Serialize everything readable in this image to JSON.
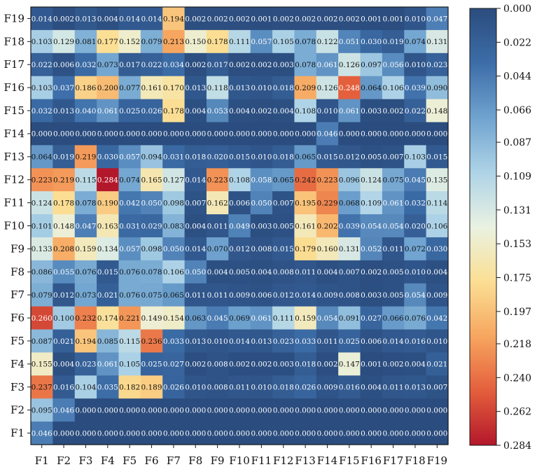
{
  "chart_data": {
    "type": "heatmap",
    "title": "",
    "xlabel": "",
    "ylabel": "",
    "x_labels": [
      "F1",
      "F2",
      "F3",
      "F4",
      "F5",
      "F6",
      "F7",
      "F8",
      "F9",
      "F10",
      "F11",
      "F12",
      "F13",
      "F14",
      "F15",
      "F16",
      "F17",
      "F18",
      "F19"
    ],
    "y_labels_top_to_bottom": [
      "F19",
      "F18",
      "F17",
      "F16",
      "F15",
      "F14",
      "F13",
      "F12",
      "F11",
      "F10",
      "F9",
      "F8",
      "F7",
      "F6",
      "F5",
      "F4",
      "F3",
      "F2",
      "F1"
    ],
    "matrix_rows_top_to_bottom": [
      [
        "0.014",
        "0.002",
        "0.013",
        "0.004",
        "0.014",
        "0.014",
        "0.194",
        "0.002",
        "0.002",
        "0.002",
        "0.001",
        "0.002",
        "0.002",
        "0.002",
        "0.002",
        "0.001",
        "0.001",
        "0.010",
        "0.047"
      ],
      [
        "0.103",
        "0.129",
        "0.081",
        "0.177",
        "0.152",
        "0.079",
        "0.213",
        "0.150",
        "0.178",
        "0.111",
        "0.057",
        "0.105",
        "0.078",
        "0.122",
        "0.051",
        "0.030",
        "0.019",
        "0.074",
        "0.131"
      ],
      [
        "0.022",
        "0.006",
        "0.032",
        "0.073",
        "0.017",
        "0.022",
        "0.034",
        "0.002",
        "0.017",
        "0.002",
        "0.002",
        "0.003",
        "0.078",
        "0.061",
        "0.126",
        "0.097",
        "0.056",
        "0.010",
        "0.023"
      ],
      [
        "0.103",
        "0.037",
        "0.186",
        "0.200",
        "0.077",
        "0.161",
        "0.170",
        "0.013",
        "0.118",
        "0.013",
        "0.010",
        "0.018",
        "0.209",
        "0.126",
        "0.248",
        "0.064",
        "0.106",
        "0.039",
        "0.090"
      ],
      [
        "0.032",
        "0.013",
        "0.040",
        "0.061",
        "0.025",
        "0.026",
        "0.178",
        "0.004",
        "0.053",
        "0.004",
        "0.002",
        "0.004",
        "0.108",
        "0.010",
        "0.061",
        "0.003",
        "0.002",
        "0.022",
        "0.148"
      ],
      [
        "0.000",
        "0.000",
        "0.000",
        "0.000",
        "0.000",
        "0.000",
        "0.000",
        "0.000",
        "0.000",
        "0.000",
        "0.000",
        "0.000",
        "0.000",
        "0.046",
        "0.000",
        "0.000",
        "0.000",
        "0.000",
        "0.000"
      ],
      [
        "0.064",
        "0.019",
        "0.219",
        "0.030",
        "0.057",
        "0.094",
        "0.031",
        "0.018",
        "0.020",
        "0.015",
        "0.010",
        "0.018",
        "0.065",
        "0.015",
        "0.012",
        "0.005",
        "0.007",
        "0.103",
        "0.015"
      ],
      [
        "0.223",
        "0.219",
        "0.115",
        "0.284",
        "0.074",
        "0.165",
        "0.127",
        "0.014",
        "0.223",
        "0.108",
        "0.058",
        "0.065",
        "0.242",
        "0.223",
        "0.096",
        "0.124",
        "0.075",
        "0.045",
        "0.135"
      ],
      [
        "0.124",
        "0.178",
        "0.078",
        "0.190",
        "0.042",
        "0.050",
        "0.098",
        "0.007",
        "0.162",
        "0.006",
        "0.050",
        "0.007",
        "0.195",
        "0.229",
        "0.068",
        "0.109",
        "0.061",
        "0.032",
        "0.114"
      ],
      [
        "0.101",
        "0.148",
        "0.047",
        "0.163",
        "0.031",
        "0.029",
        "0.083",
        "0.004",
        "0.011",
        "0.049",
        "0.003",
        "0.005",
        "0.161",
        "0.202",
        "0.039",
        "0.054",
        "0.054",
        "0.020",
        "0.106"
      ],
      [
        "0.133",
        "0.208",
        "0.159",
        "0.134",
        "0.057",
        "0.098",
        "0.050",
        "0.014",
        "0.070",
        "0.012",
        "0.008",
        "0.015",
        "0.179",
        "0.160",
        "0.131",
        "0.052",
        "0.011",
        "0.072",
        "0.030"
      ],
      [
        "0.086",
        "0.055",
        "0.076",
        "0.015",
        "0.076",
        "0.078",
        "0.106",
        "0.050",
        "0.004",
        "0.005",
        "0.004",
        "0.008",
        "0.011",
        "0.004",
        "0.007",
        "0.002",
        "0.005",
        "0.010",
        "0.004"
      ],
      [
        "0.079",
        "0.012",
        "0.073",
        "0.021",
        "0.076",
        "0.075",
        "0.065",
        "0.011",
        "0.011",
        "0.009",
        "0.006",
        "0.012",
        "0.014",
        "0.009",
        "0.008",
        "0.003",
        "0.005",
        "0.054",
        "0.009"
      ],
      [
        "0.260",
        "0.100",
        "0.232",
        "0.174",
        "0.221",
        "0.149",
        "0.154",
        "0.063",
        "0.045",
        "0.069",
        "0.061",
        "0.111",
        "0.159",
        "0.054",
        "0.091",
        "0.027",
        "0.066",
        "0.076",
        "0.042"
      ],
      [
        "0.087",
        "0.021",
        "0.194",
        "0.085",
        "0.115",
        "0.236",
        "0.033",
        "0.013",
        "0.010",
        "0.014",
        "0.013",
        "0.023",
        "0.033",
        "0.011",
        "0.025",
        "0.006",
        "0.014",
        "0.016",
        "0.010"
      ],
      [
        "0.155",
        "0.004",
        "0.023",
        "0.061",
        "0.105",
        "0.025",
        "0.027",
        "0.002",
        "0.008",
        "0.002",
        "0.002",
        "0.003",
        "0.018",
        "0.002",
        "0.147",
        "0.001",
        "0.002",
        "0.004",
        "0.021"
      ],
      [
        "0.237",
        "0.016",
        "0.104",
        "0.035",
        "0.182",
        "0.189",
        "0.026",
        "0.010",
        "0.008",
        "0.011",
        "0.010",
        "0.018",
        "0.026",
        "0.009",
        "0.016",
        "0.004",
        "0.011",
        "0.013",
        "0.007"
      ],
      [
        "0.095",
        "0.046",
        "0.000",
        "0.000",
        "0.000",
        "0.000",
        "0.000",
        "0.000",
        "0.000",
        "0.000",
        "0.000",
        "0.000",
        "0.000",
        "0.000",
        "0.000",
        "0.000",
        "0.000",
        "0.000",
        "0.000"
      ],
      [
        "0.046",
        "0.000",
        "0.000",
        "0.000",
        "0.000",
        "0.000",
        "0.000",
        "0.000",
        "0.000",
        "0.000",
        "0.000",
        "0.000",
        "0.000",
        "0.000",
        "0.000",
        "0.000",
        "0.000",
        "0.000",
        "0.000"
      ]
    ],
    "colorbar": {
      "range": [
        0.0,
        0.284
      ],
      "ticks": [
        "0.000",
        "0.022",
        "0.044",
        "0.066",
        "0.087",
        "0.109",
        "0.131",
        "0.153",
        "0.175",
        "0.197",
        "0.218",
        "0.240",
        "0.262",
        "0.284"
      ],
      "colormap_stops": [
        "#2b4c7e",
        "#3c6da8",
        "#6fa3cf",
        "#aed3e7",
        "#e9f2e2",
        "#fbdf94",
        "#f7a660",
        "#e45f3c",
        "#b3172a"
      ]
    }
  }
}
